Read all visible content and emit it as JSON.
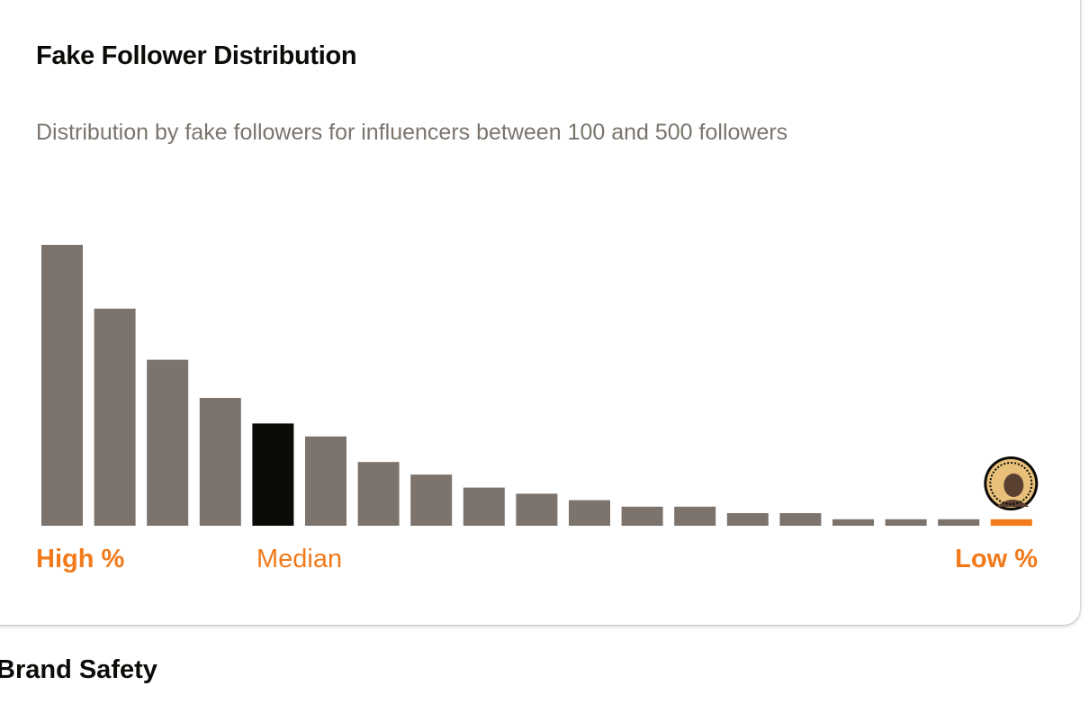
{
  "card": {
    "title": "Fake Follower Distribution",
    "subtitle": "Distribution by fake followers for influencers between 100 and 500 followers"
  },
  "chart_data": {
    "type": "bar",
    "values": [
      100,
      77.3,
      59.1,
      45.5,
      36.4,
      31.8,
      22.7,
      18.2,
      13.6,
      11.4,
      9.1,
      6.8,
      6.8,
      4.5,
      4.5,
      2.3,
      2.3,
      2.3,
      2.3
    ],
    "highlight_median_index": 4,
    "user_index": 18,
    "ylim": [
      0,
      100
    ],
    "grid": false,
    "axis_labels": {
      "left": "High %",
      "middle": "Median",
      "right": "Low %"
    },
    "colors": {
      "bar": "#7b736c",
      "median": "#0d0b08",
      "user": "#f27a1a"
    }
  },
  "avatar": {
    "icon": "user-avatar-icon",
    "colors": {
      "ring": "#0d0b08",
      "fill": "#e8c07a",
      "face": "#5a4030"
    }
  },
  "next_section": {
    "title": "Brand Safety"
  }
}
